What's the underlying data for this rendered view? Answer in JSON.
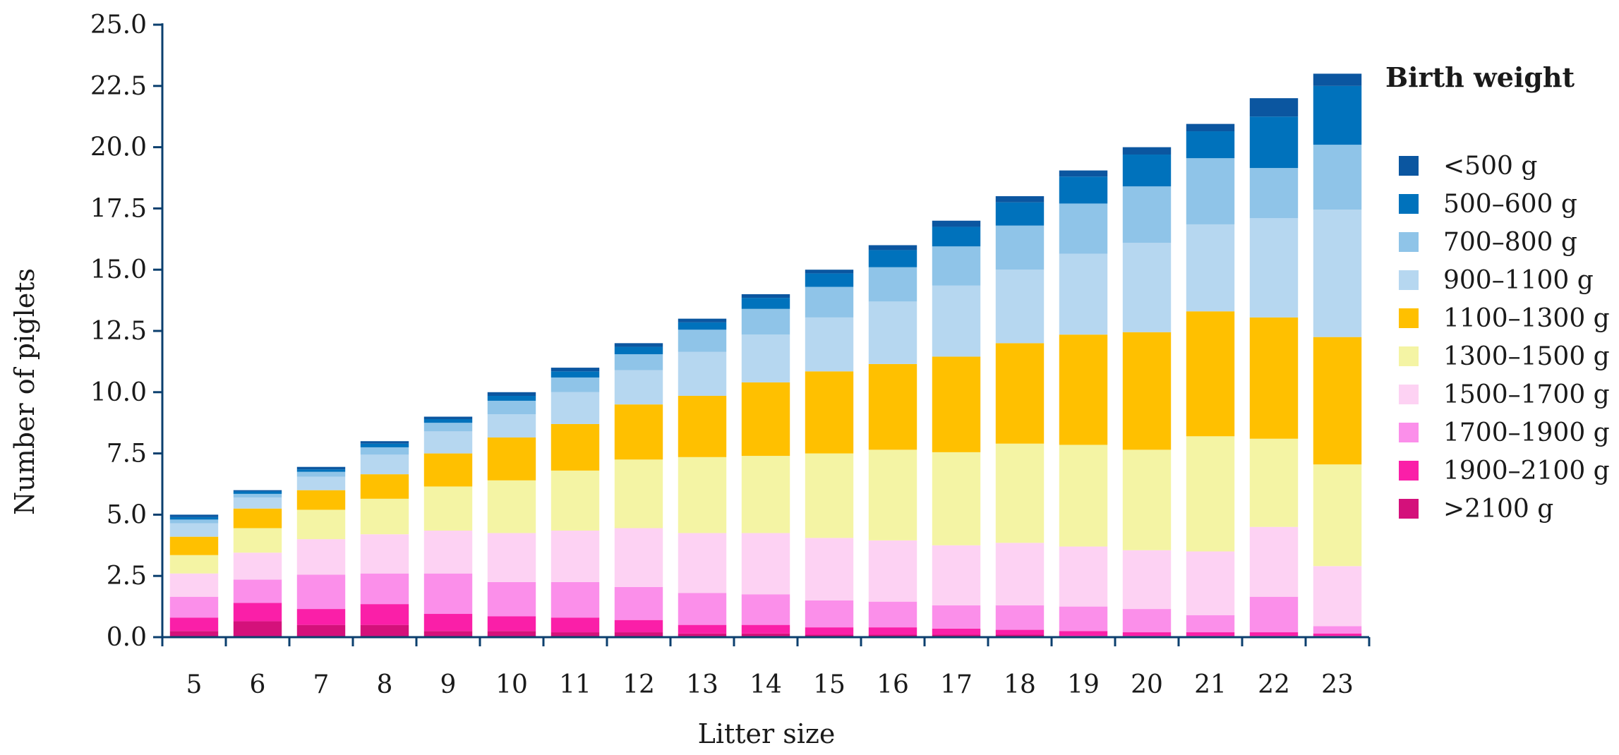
{
  "chart_data": {
    "type": "bar",
    "stacked": true,
    "title": "",
    "xlabel": "Litter size",
    "ylabel": "Number of piglets",
    "ylim": [
      0,
      25
    ],
    "yticks": [
      "0.0",
      "2.5",
      "5.0",
      "7.5",
      "10.0",
      "12.5",
      "15.0",
      "17.5",
      "20.0",
      "22.5",
      "25.0"
    ],
    "categories": [
      "5",
      "6",
      "7",
      "8",
      "9",
      "10",
      "11",
      "12",
      "13",
      "14",
      "15",
      "16",
      "17",
      "18",
      "19",
      "20",
      "21",
      "22",
      "23"
    ],
    "legend": {
      "title": "Birth weight",
      "placement": "right",
      "order": [
        "<500 g",
        "500–600 g",
        "700–800 g",
        "900–1100 g",
        "1100–1300 g",
        "1300–1500 g",
        "1500–1700 g",
        "1700–1900 g",
        "1900–2100 g",
        ">2100 g"
      ]
    },
    "series": [
      {
        "name": ">2100 g",
        "color": "#d4117b",
        "values": [
          0.25,
          0.65,
          0.5,
          0.5,
          0.25,
          0.25,
          0.2,
          0.2,
          0.15,
          0.15,
          0.1,
          0.1,
          0.1,
          0.1,
          0.05,
          0.05,
          0.05,
          0.05,
          0.05
        ]
      },
      {
        "name": "1900–2100 g",
        "color": "#fa1fa8",
        "values": [
          0.55,
          0.75,
          0.65,
          0.85,
          0.7,
          0.6,
          0.6,
          0.5,
          0.35,
          0.35,
          0.3,
          0.3,
          0.25,
          0.2,
          0.2,
          0.15,
          0.15,
          0.15,
          0.1
        ]
      },
      {
        "name": "1700–1900 g",
        "color": "#fb8fea",
        "values": [
          0.85,
          0.95,
          1.4,
          1.25,
          1.65,
          1.4,
          1.45,
          1.35,
          1.3,
          1.25,
          1.1,
          1.05,
          0.95,
          1.0,
          1.0,
          0.95,
          0.7,
          1.45,
          0.3
        ]
      },
      {
        "name": "1500–1700 g",
        "color": "#fdd2f3",
        "values": [
          0.95,
          1.1,
          1.45,
          1.6,
          1.75,
          2.0,
          2.1,
          2.4,
          2.45,
          2.5,
          2.55,
          2.5,
          2.45,
          2.55,
          2.45,
          2.4,
          2.6,
          2.85,
          2.45
        ]
      },
      {
        "name": "1300–1500 g",
        "color": "#f4f4a4",
        "values": [
          0.75,
          1.0,
          1.2,
          1.45,
          1.8,
          2.15,
          2.45,
          2.8,
          3.1,
          3.15,
          3.45,
          3.7,
          3.8,
          4.05,
          4.15,
          4.1,
          4.7,
          3.6,
          4.15
        ]
      },
      {
        "name": "1100–1300 g",
        "color": "#ffc000",
        "values": [
          0.75,
          0.8,
          0.8,
          1.0,
          1.35,
          1.75,
          1.9,
          2.25,
          2.5,
          3.0,
          3.35,
          3.5,
          3.9,
          4.1,
          4.5,
          4.8,
          5.1,
          4.95,
          5.2
        ]
      },
      {
        "name": "900–1100 g",
        "color": "#b6d7f0",
        "values": [
          0.55,
          0.45,
          0.55,
          0.8,
          0.9,
          0.95,
          1.3,
          1.4,
          1.8,
          1.95,
          2.2,
          2.55,
          2.9,
          3.0,
          3.3,
          3.65,
          3.55,
          4.05,
          5.2
        ]
      },
      {
        "name": "700–800 g",
        "color": "#8fc4e8",
        "values": [
          0.15,
          0.15,
          0.2,
          0.3,
          0.35,
          0.55,
          0.6,
          0.65,
          0.9,
          1.05,
          1.25,
          1.4,
          1.6,
          1.8,
          2.05,
          2.3,
          2.7,
          2.05,
          2.65
        ]
      },
      {
        "name": "500–600 g",
        "color": "#0072bc",
        "values": [
          0.1,
          0.1,
          0.1,
          0.15,
          0.15,
          0.2,
          0.25,
          0.3,
          0.3,
          0.45,
          0.55,
          0.7,
          0.8,
          0.95,
          1.1,
          1.3,
          1.1,
          2.1,
          2.4
        ]
      },
      {
        "name": "<500 g",
        "color": "#0b56a0",
        "values": [
          0.1,
          0.05,
          0.1,
          0.1,
          0.1,
          0.15,
          0.15,
          0.15,
          0.15,
          0.15,
          0.15,
          0.2,
          0.25,
          0.25,
          0.25,
          0.3,
          0.3,
          0.75,
          0.5
        ]
      }
    ]
  }
}
